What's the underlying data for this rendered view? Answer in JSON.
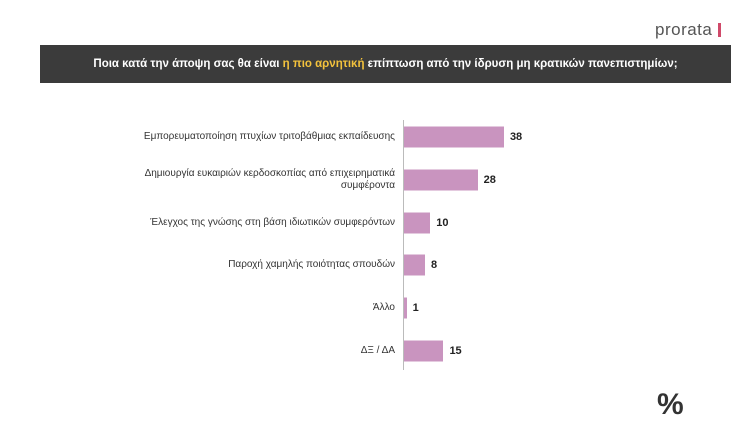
{
  "logo": "prorata",
  "chart_data": {
    "type": "bar",
    "orientation": "horizontal",
    "title": [
      "Ποια κατά την άποψη σας θα είναι ",
      "η πιο αρνητική",
      " επίπτωση από την ίδρυση μη κρατικών πανεπιστημίων;"
    ],
    "categories": [
      "Εμπορευματοποίηση πτυχίων τριτοβάθμιας εκπαίδευσης",
      "Δημιουργία ευκαιριών κερδοσκοπίας από επιχειρηματικά συμφέροντα",
      "Έλεγχος της γνώσης στη βάση ιδιωτικών συμφερόντων",
      "Παροχή χαμηλής ποιότητας σπουδών",
      "Άλλο",
      "ΔΞ / ΔΑ"
    ],
    "values": [
      38,
      28,
      10,
      8,
      1,
      15
    ],
    "color": "#c994bf"
  },
  "footer_mark": "%"
}
